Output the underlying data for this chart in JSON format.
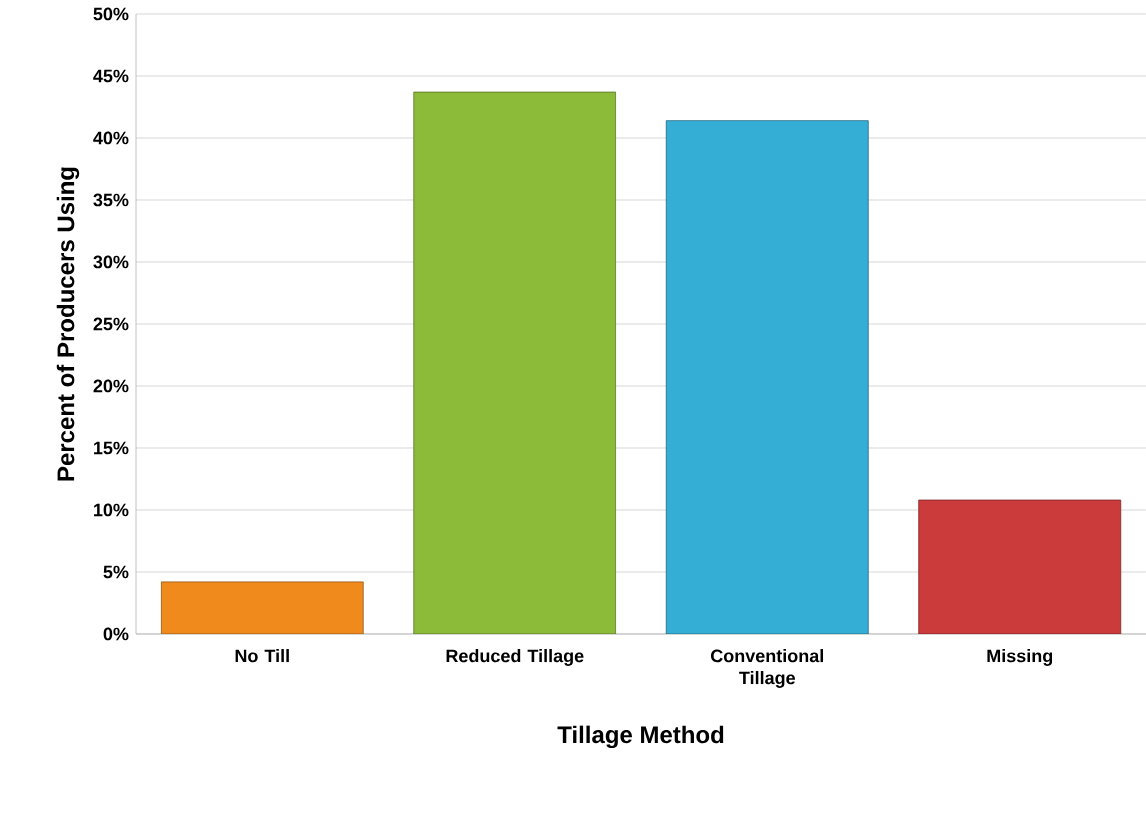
{
  "chart_data": {
    "type": "bar",
    "xlabel": "Tillage Method",
    "ylabel": "Percent of Producers Using",
    "categories": [
      "No Till",
      "Reduced Tillage",
      "Conventional Tillage",
      "Missing"
    ],
    "values": [
      4.2,
      43.7,
      41.4,
      10.8
    ],
    "colors": [
      "#f08a1c",
      "#8cbb3a",
      "#35aed6",
      "#cc3b3b"
    ],
    "ylim": [
      0,
      50
    ],
    "yticks": [
      {
        "value": 0,
        "label": "0%"
      },
      {
        "value": 5,
        "label": "5%"
      },
      {
        "value": 10,
        "label": "10%"
      },
      {
        "value": 15,
        "label": "15%"
      },
      {
        "value": 20,
        "label": "20%"
      },
      {
        "value": 25,
        "label": "25%"
      },
      {
        "value": 30,
        "label": "30%"
      },
      {
        "value": 35,
        "label": "35%"
      },
      {
        "value": 40,
        "label": "40%"
      },
      {
        "value": 45,
        "label": "45%"
      },
      {
        "value": 50,
        "label": "50%"
      }
    ],
    "grid": "y"
  }
}
